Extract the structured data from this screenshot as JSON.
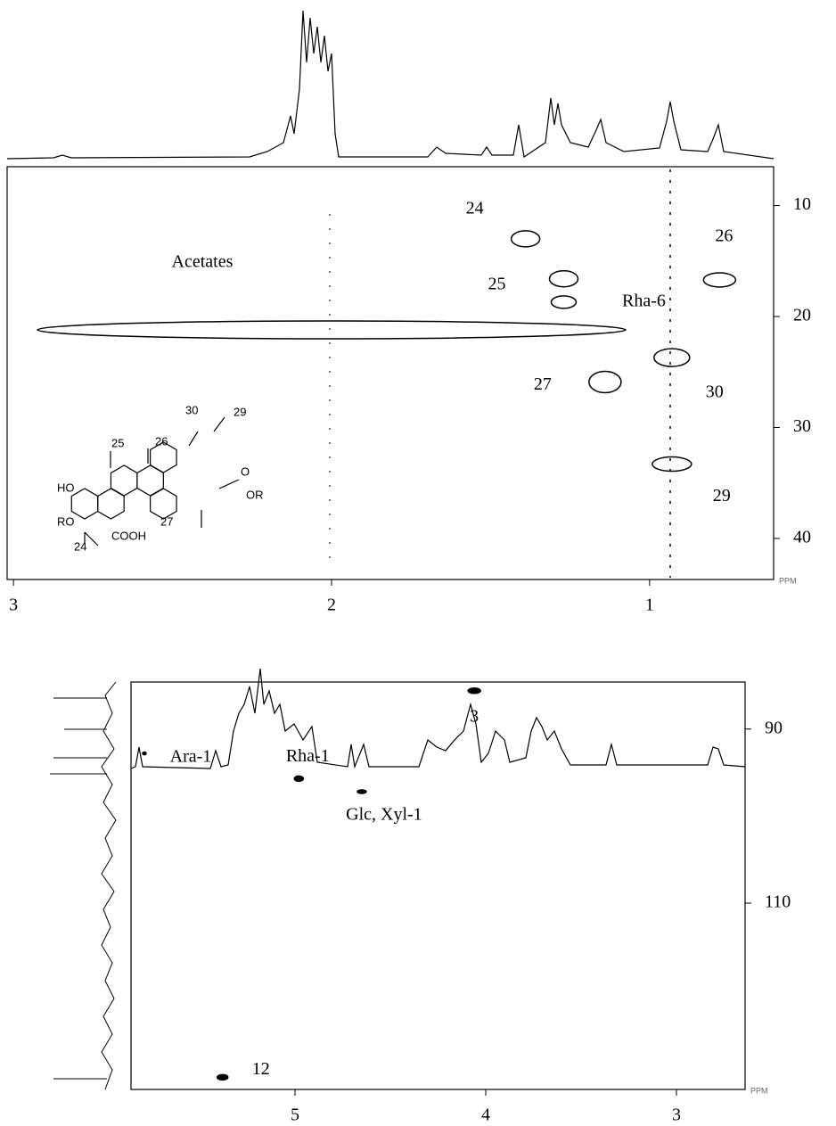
{
  "chart_data": [
    {
      "type": "scatter",
      "x_label": "PPM",
      "xlim": [
        3.02,
        0.61
      ],
      "ylim": [
        6.5,
        43.7
      ],
      "xticks": [
        3,
        2,
        1
      ],
      "yticks": [
        10,
        20,
        30,
        40
      ],
      "series": [
        {
          "color": "#000000",
          "x": [
            1.39,
            1.27,
            1.27,
            2.0,
            1.14,
            0.78,
            0.93,
            0.93
          ],
          "values": [
            13.0,
            16.6,
            18.7,
            21.2,
            25.9,
            16.7,
            23.7,
            33.3
          ],
          "labels": [
            "24",
            "25",
            "Rha-6",
            "Acetates",
            "27",
            "26",
            "30",
            "29"
          ]
        }
      ],
      "structure_labels": [
        "30",
        "29",
        "25",
        "26",
        "27",
        "HO",
        "RO",
        "24",
        "COOH",
        "O",
        "OR"
      ]
    },
    {
      "type": "scatter",
      "x_label": "PPM",
      "xlim": [
        5.86,
        2.64
      ],
      "ylim": [
        84.6,
        131.4
      ],
      "xticks": [
        5,
        4,
        3
      ],
      "yticks": [
        90,
        110
      ],
      "series": [
        {
          "color": "#000000",
          "x": [
            4.06,
            5.79,
            4.98,
            4.65,
            5.38
          ],
          "values": [
            85.6,
            92.8,
            95.7,
            97.2,
            130.0
          ],
          "labels": [
            "3",
            "Ara-1",
            "Rha-1",
            "Glc, Xyl-1",
            "12"
          ]
        }
      ]
    }
  ]
}
